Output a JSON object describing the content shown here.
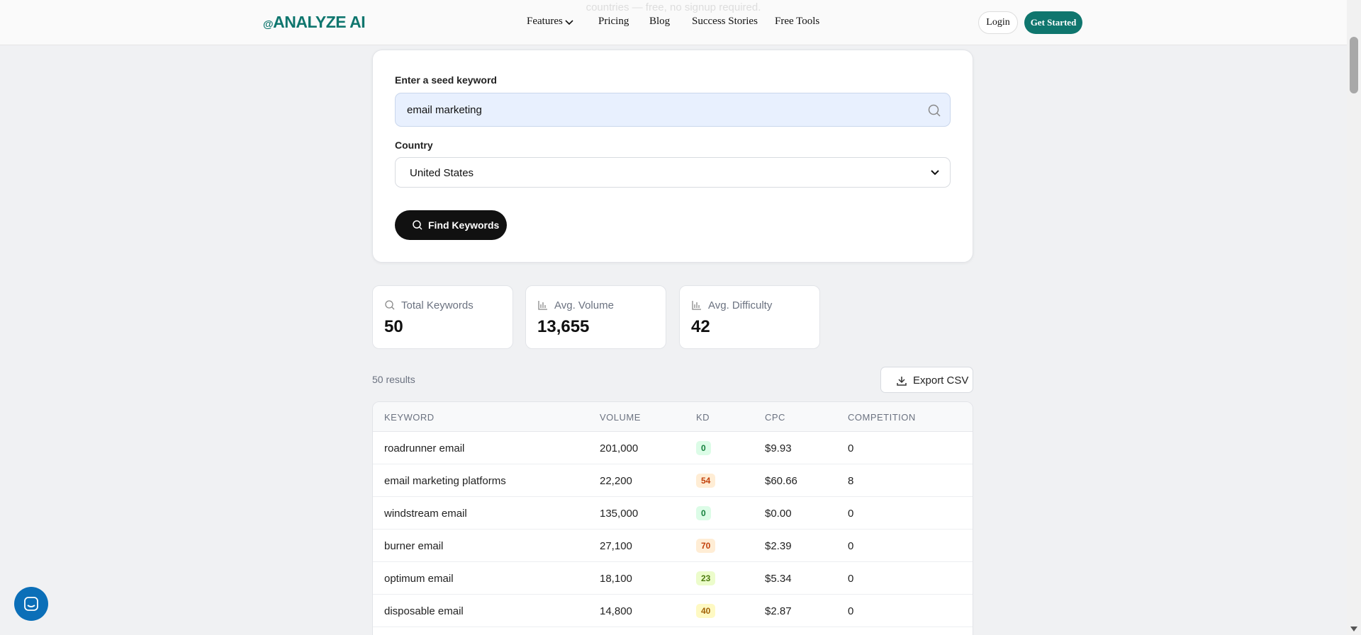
{
  "header": {
    "logo": "ANALYZE AI",
    "faded_text": "countries — free, no signup required.",
    "nav": [
      "Features",
      "Pricing",
      "Blog",
      "Success Stories",
      "Free Tools"
    ],
    "login": "Login",
    "cta": "Get Started"
  },
  "search": {
    "keyword_label": "Enter a seed keyword",
    "keyword_value": "email marketing",
    "country_label": "Country",
    "country_value": "United States",
    "button": "Find Keywords"
  },
  "stats": [
    {
      "label": "Total Keywords",
      "value": "50"
    },
    {
      "label": "Avg. Volume",
      "value": "13,655"
    },
    {
      "label": "Avg. Difficulty",
      "value": "42"
    }
  ],
  "results": {
    "count": "50 results",
    "export": "Export CSV"
  },
  "table": {
    "columns": [
      "KEYWORD",
      "VOLUME",
      "KD",
      "CPC",
      "COMPETITION"
    ],
    "rows": [
      [
        "roadrunner email",
        "201,000",
        "0",
        "$9.93",
        "0"
      ],
      [
        "email marketing platforms",
        "22,200",
        "54",
        "$60.66",
        "8"
      ],
      [
        "windstream email",
        "135,000",
        "0",
        "$0.00",
        "0"
      ],
      [
        "burner email",
        "27,100",
        "70",
        "$2.39",
        "0"
      ],
      [
        "optimum email",
        "18,100",
        "23",
        "$5.34",
        "0"
      ],
      [
        "disposable email",
        "14,800",
        "40",
        "$2.87",
        "0"
      ]
    ]
  }
}
